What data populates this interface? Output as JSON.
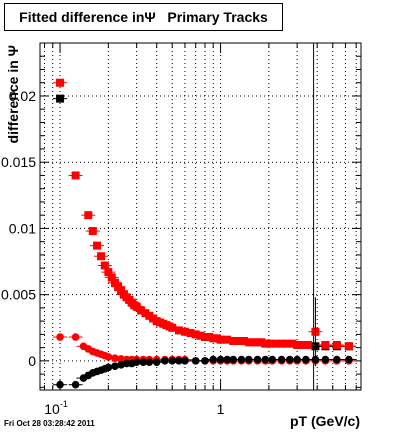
{
  "chart_data": {
    "type": "scatter",
    "title": "Fitted difference inΨ   Primary Tracks",
    "xlabel": "pT (GeV/c)",
    "ylabel": "difference in Ψ",
    "xscale": "log",
    "xlim": [
      0.075,
      7.5
    ],
    "ylim": [
      -0.0022,
      0.024
    ],
    "grid": true,
    "x_tick_labels": [
      {
        "value": 0.1,
        "base": "10",
        "exp": "-1"
      },
      {
        "value": 1,
        "base": "1",
        "exp": ""
      }
    ],
    "y_ticks": [
      {
        "value": 0,
        "label": "0"
      },
      {
        "value": 0.005,
        "label": "0.005"
      },
      {
        "value": 0.01,
        "label": "0.01"
      },
      {
        "value": 0.015,
        "label": "0.015"
      },
      {
        "value": 0.02,
        "label": "0.02"
      }
    ],
    "vertical_line_x": 3.8,
    "series": [
      {
        "color": "#000000",
        "marker": "square",
        "x": [
          0.1,
          3.9,
          4.5,
          5.3,
          6.3
        ],
        "y": [
          0.0198,
          0.0011,
          0.0011,
          0.0011,
          0.0011
        ]
      },
      {
        "color": "#ff0000",
        "marker": "square",
        "x": [
          0.1,
          0.125,
          0.15,
          0.16,
          0.17,
          0.18,
          0.19,
          0.2,
          0.21,
          0.22,
          0.23,
          0.24,
          0.25,
          0.26,
          0.27,
          0.28,
          0.29,
          0.3,
          0.32,
          0.34,
          0.36,
          0.38,
          0.4,
          0.42,
          0.44,
          0.46,
          0.48,
          0.5,
          0.55,
          0.6,
          0.65,
          0.7,
          0.75,
          0.8,
          0.85,
          0.9,
          0.95,
          1.0,
          1.1,
          1.2,
          1.3,
          1.4,
          1.5,
          1.6,
          1.7,
          1.8,
          1.9,
          2.0,
          2.2,
          2.4,
          2.6,
          2.8,
          3.0,
          3.2,
          3.5,
          3.9,
          4.5,
          5.3,
          6.3
        ],
        "y": [
          0.021,
          0.014,
          0.011,
          0.0098,
          0.0087,
          0.0079,
          0.0072,
          0.0067,
          0.0063,
          0.0059,
          0.0056,
          0.0053,
          0.005,
          0.0048,
          0.0046,
          0.0044,
          0.0042,
          0.0041,
          0.0038,
          0.0036,
          0.0034,
          0.0032,
          0.003,
          0.0029,
          0.0028,
          0.0027,
          0.0026,
          0.0025,
          0.0023,
          0.0022,
          0.0021,
          0.002,
          0.0019,
          0.0018,
          0.0018,
          0.0017,
          0.0017,
          0.0016,
          0.0016,
          0.0015,
          0.0015,
          0.0015,
          0.0014,
          0.0014,
          0.0014,
          0.0014,
          0.0013,
          0.0013,
          0.0013,
          0.0013,
          0.0013,
          0.0013,
          0.0012,
          0.0012,
          0.0012,
          0.0022,
          0.0012,
          0.0012,
          0.0011
        ]
      },
      {
        "color": "#ff0000",
        "marker": "circle",
        "x": [
          0.1,
          0.125,
          0.14,
          0.15,
          0.16,
          0.17,
          0.18,
          0.19,
          0.2,
          0.22,
          0.24,
          0.26,
          0.28,
          0.3,
          0.33,
          0.36,
          0.4,
          0.45,
          0.5,
          0.55,
          0.6,
          0.7,
          0.8,
          0.9,
          1.0,
          1.1,
          1.2,
          1.35,
          1.5,
          1.7,
          1.9,
          2.1,
          2.4,
          2.7,
          3.0,
          3.4,
          3.9,
          4.5,
          5.3,
          6.3
        ],
        "y": [
          0.0018,
          0.0018,
          0.0011,
          0.0009,
          0.0007,
          0.0006,
          0.0005,
          0.0004,
          0.0003,
          0.0002,
          0.00015,
          0.0001,
          0.0001,
          0.0001,
          0.0001,
          0.0001,
          0.0001,
          0.0001,
          0.0001,
          0.0001,
          0.0001,
          0.0,
          0.0,
          0.0,
          0.0,
          0.0,
          0.0,
          0.0,
          0.0,
          0.0,
          0.0,
          0.0,
          0.0,
          0.0,
          0.0,
          0.0,
          0.0,
          0.0,
          0.0,
          0.0
        ]
      },
      {
        "color": "#000000",
        "marker": "circle",
        "x": [
          0.1,
          0.125,
          0.14,
          0.15,
          0.16,
          0.17,
          0.18,
          0.19,
          0.2,
          0.22,
          0.24,
          0.26,
          0.28,
          0.3,
          0.33,
          0.36,
          0.4,
          0.45,
          0.5,
          0.55,
          0.6,
          0.7,
          0.8,
          0.9,
          1.0,
          1.1,
          1.2,
          1.35,
          1.5,
          1.7,
          1.9,
          2.1,
          2.4,
          2.7,
          3.0,
          3.4,
          3.9,
          4.5,
          5.3,
          6.3
        ],
        "y": [
          -0.0018,
          -0.0018,
          -0.0013,
          -0.0011,
          -0.0009,
          -0.0008,
          -0.0007,
          -0.0006,
          -0.0005,
          -0.0004,
          -0.0003,
          -0.0002,
          -0.0002,
          -0.0001,
          -0.0001,
          -0.0001,
          -0.0001,
          0.0,
          0.0,
          0.0,
          0.0,
          0.0,
          0.0,
          0.0001,
          0.0001,
          0.0001,
          0.0001,
          0.0001,
          0.0001,
          0.0001,
          0.0001,
          0.0001,
          0.0001,
          0.0001,
          0.0001,
          0.0001,
          0.0001,
          0.0001,
          0.0001,
          0.0001
        ]
      }
    ]
  },
  "footer": {
    "timestamp": "Fri Oct 28 03:28:42 2011"
  }
}
